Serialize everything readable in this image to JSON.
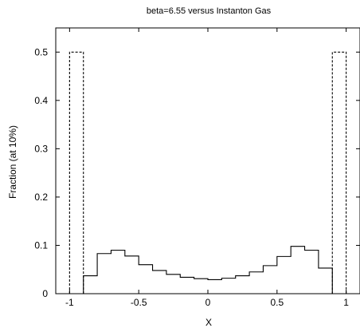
{
  "chart_data": {
    "type": "histogram",
    "title": "beta=6.55  versus  Instanton Gas",
    "xlabel": "X",
    "ylabel": "Fraction (at 10%)",
    "xlim": [
      -1.1,
      1.1
    ],
    "ylim": [
      0,
      0.55
    ],
    "x_ticks": [
      {
        "value": -1,
        "label": "-1"
      },
      {
        "value": -0.5,
        "label": "-0.5"
      },
      {
        "value": 0,
        "label": "0"
      },
      {
        "value": 0.5,
        "label": "0.5"
      },
      {
        "value": 1,
        "label": "1"
      }
    ],
    "y_ticks": [
      {
        "value": 0,
        "label": "0"
      },
      {
        "value": 0.1,
        "label": "0.1"
      },
      {
        "value": 0.2,
        "label": "0.2"
      },
      {
        "value": 0.3,
        "label": "0.3"
      },
      {
        "value": 0.4,
        "label": "0.4"
      },
      {
        "value": 0.5,
        "label": "0.5"
      }
    ],
    "bin_edges": [
      -1.0,
      -0.9,
      -0.8,
      -0.7,
      -0.6,
      -0.5,
      -0.4,
      -0.3,
      -0.2,
      -0.1,
      0.0,
      0.1,
      0.2,
      0.3,
      0.4,
      0.5,
      0.6,
      0.7,
      0.8,
      0.9,
      1.0
    ],
    "series": [
      {
        "style": "solid",
        "color": "#000000",
        "values": [
          0.0,
          0.037,
          0.083,
          0.09,
          0.078,
          0.06,
          0.048,
          0.04,
          0.034,
          0.031,
          0.029,
          0.032,
          0.037,
          0.045,
          0.058,
          0.077,
          0.098,
          0.09,
          0.053,
          0.0
        ]
      },
      {
        "style": "dashed",
        "color": "#000000",
        "values": [
          0.5,
          0.0,
          0.0,
          0.0,
          0.0,
          0.0,
          0.0,
          0.0,
          0.0,
          0.0,
          0.0,
          0.0,
          0.0,
          0.0,
          0.0,
          0.0,
          0.0,
          0.0,
          0.0,
          0.5
        ]
      }
    ],
    "grid": false,
    "legend": "none"
  }
}
